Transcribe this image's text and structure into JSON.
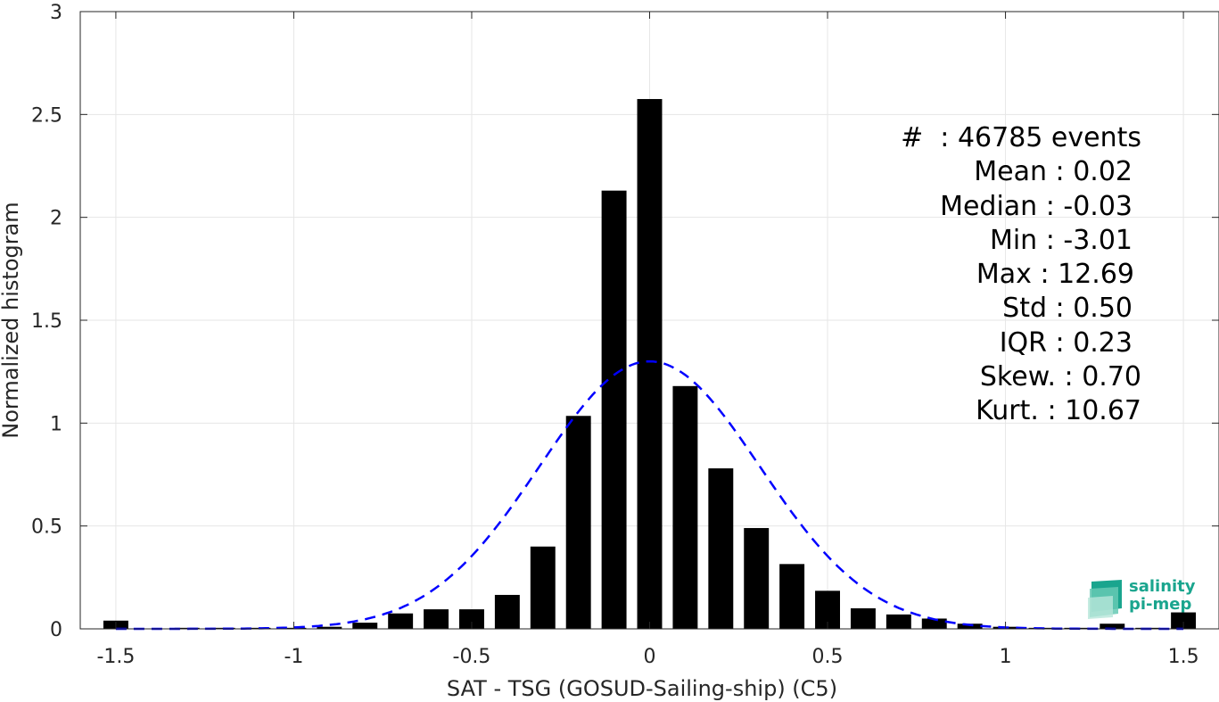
{
  "chart_data": {
    "type": "bar",
    "xlabel": "SAT - TSG (GOSUD-Sailing-ship) (C5)",
    "ylabel": "Normalized histogram",
    "xlim": [
      -1.6,
      1.6
    ],
    "ylim": [
      0,
      3
    ],
    "x_ticks": [
      -1.5,
      -1,
      -0.5,
      0,
      0.5,
      1,
      1.5
    ],
    "x_tick_labels": [
      "-1.5",
      "-1",
      "-0.5",
      "0",
      "0.5",
      "1",
      "1.5"
    ],
    "y_ticks": [
      0,
      0.5,
      1,
      1.5,
      2,
      2.5,
      3
    ],
    "y_tick_labels": [
      "0",
      "0.5",
      "1",
      "1.5",
      "2",
      "2.5",
      "3"
    ],
    "grid": true,
    "bar_color": "#000000",
    "bar_width": 0.07,
    "bins": [
      {
        "x": -1.5,
        "value": 0.04
      },
      {
        "x": -1.4,
        "value": 0.0
      },
      {
        "x": -1.3,
        "value": 0.005
      },
      {
        "x": -1.2,
        "value": 0.005
      },
      {
        "x": -1.1,
        "value": 0.005
      },
      {
        "x": -1.0,
        "value": 0.005
      },
      {
        "x": -0.9,
        "value": 0.01
      },
      {
        "x": -0.8,
        "value": 0.03
      },
      {
        "x": -0.7,
        "value": 0.075
      },
      {
        "x": -0.6,
        "value": 0.095
      },
      {
        "x": -0.5,
        "value": 0.095
      },
      {
        "x": -0.4,
        "value": 0.165
      },
      {
        "x": -0.3,
        "value": 0.4
      },
      {
        "x": -0.2,
        "value": 1.035
      },
      {
        "x": -0.1,
        "value": 2.13
      },
      {
        "x": 0.0,
        "value": 2.575
      },
      {
        "x": 0.1,
        "value": 1.18
      },
      {
        "x": 0.2,
        "value": 0.78
      },
      {
        "x": 0.3,
        "value": 0.49
      },
      {
        "x": 0.4,
        "value": 0.315
      },
      {
        "x": 0.5,
        "value": 0.185
      },
      {
        "x": 0.6,
        "value": 0.1
      },
      {
        "x": 0.7,
        "value": 0.07
      },
      {
        "x": 0.8,
        "value": 0.05
      },
      {
        "x": 0.9,
        "value": 0.025
      },
      {
        "x": 1.0,
        "value": 0.01
      },
      {
        "x": 1.1,
        "value": 0.005
      },
      {
        "x": 1.2,
        "value": 0.005
      },
      {
        "x": 1.3,
        "value": 0.025
      },
      {
        "x": 1.4,
        "value": 0.005
      },
      {
        "x": 1.5,
        "value": 0.08
      }
    ],
    "fit": {
      "type": "normal",
      "mean": 0.0,
      "std": 0.31,
      "peak": 1.3,
      "color": "#0000ff",
      "style": "dashed"
    }
  },
  "stats": [
    "#  : 46785 events",
    "Mean : 0.02",
    "Median : -0.03",
    "Min : -3.01",
    "Max : 12.69",
    "Std : 0.50",
    "IQR : 0.23",
    "Skew. : 0.70",
    "Kurt. : 10.67"
  ],
  "logo": {
    "line1": "salinity",
    "line2": "pi-mep",
    "color": "#1aa58e"
  }
}
